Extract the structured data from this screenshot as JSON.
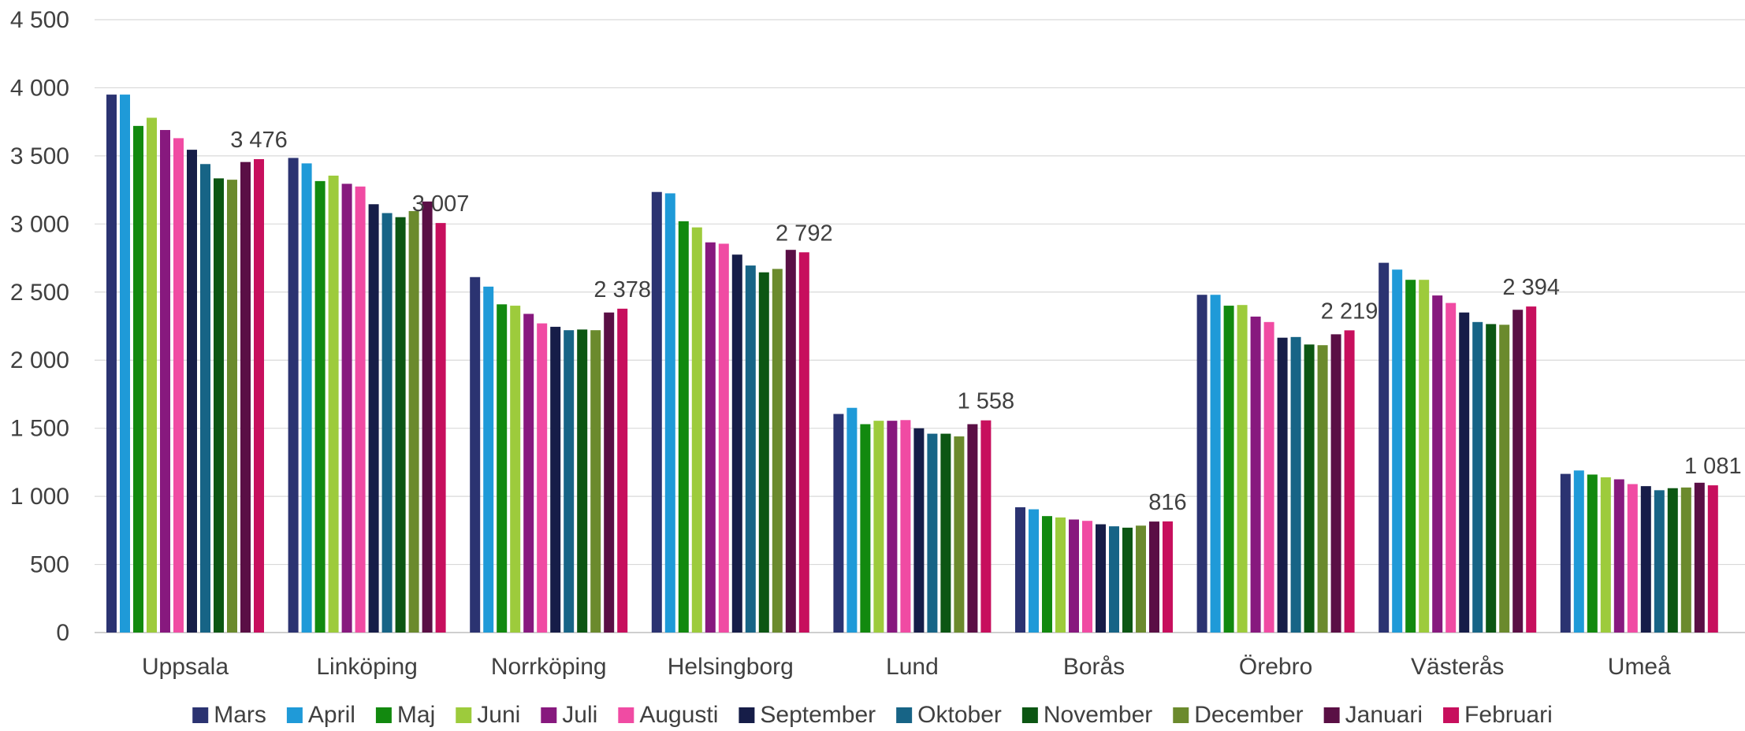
{
  "chart_data": {
    "type": "bar",
    "title": "",
    "xlabel": "",
    "ylabel": "",
    "ylim": [
      0,
      4500
    ],
    "yticks": [
      0,
      500,
      1000,
      1500,
      2000,
      2500,
      3000,
      3500,
      4000,
      4500
    ],
    "ytick_labels": [
      "0",
      "500",
      "1 000",
      "1 500",
      "2 000",
      "2 500",
      "3 000",
      "3 500",
      "4 000",
      "4 500"
    ],
    "grid": true,
    "legend_position": "bottom",
    "categories": [
      "Uppsala",
      "Linköping",
      "Norrköping",
      "Helsingborg",
      "Lund",
      "Borås",
      "Örebro",
      "Västerås",
      "Umeå"
    ],
    "series": [
      {
        "name": "Mars",
        "color": "#2b3371",
        "values": [
          3950,
          3485,
          2610,
          3235,
          1605,
          920,
          2480,
          2715,
          1165
        ]
      },
      {
        "name": "April",
        "color": "#1f9ad8",
        "values": [
          3950,
          3445,
          2540,
          3225,
          1650,
          905,
          2480,
          2665,
          1190
        ]
      },
      {
        "name": "Maj",
        "color": "#12890f",
        "values": [
          3720,
          3315,
          2410,
          3020,
          1530,
          855,
          2400,
          2590,
          1160
        ]
      },
      {
        "name": "Juni",
        "color": "#9dcb3c",
        "values": [
          3780,
          3355,
          2400,
          2975,
          1555,
          845,
          2405,
          2590,
          1140
        ]
      },
      {
        "name": "Juli",
        "color": "#87197e",
        "values": [
          3690,
          3295,
          2340,
          2865,
          1555,
          830,
          2320,
          2475,
          1125
        ]
      },
      {
        "name": "Augusti",
        "color": "#f04ba3",
        "values": [
          3630,
          3275,
          2270,
          2855,
          1560,
          820,
          2280,
          2420,
          1090
        ]
      },
      {
        "name": "September",
        "color": "#161d48",
        "values": [
          3545,
          3145,
          2245,
          2775,
          1500,
          795,
          2165,
          2350,
          1075
        ]
      },
      {
        "name": "Oktober",
        "color": "#176486",
        "values": [
          3440,
          3080,
          2220,
          2695,
          1460,
          780,
          2170,
          2280,
          1045
        ]
      },
      {
        "name": "November",
        "color": "#0c5613",
        "values": [
          3335,
          3050,
          2225,
          2645,
          1460,
          770,
          2115,
          2265,
          1060
        ]
      },
      {
        "name": "December",
        "color": "#6b8a2d",
        "values": [
          3325,
          3095,
          2220,
          2670,
          1440,
          785,
          2110,
          2260,
          1065
        ]
      },
      {
        "name": "Januari",
        "color": "#5a0f45",
        "values": [
          3455,
          3165,
          2350,
          2810,
          1530,
          815,
          2190,
          2370,
          1100
        ]
      },
      {
        "name": "Februari",
        "color": "#c70f5d",
        "values": [
          3476,
          3007,
          2378,
          2792,
          1558,
          816,
          2219,
          2394,
          1081
        ]
      }
    ],
    "data_labels": [
      "3 476",
      "3 007",
      "2 378",
      "2 792",
      "1 558",
      "816",
      "2 219",
      "2 394",
      "1 081"
    ],
    "data_label_series": "Februari"
  }
}
